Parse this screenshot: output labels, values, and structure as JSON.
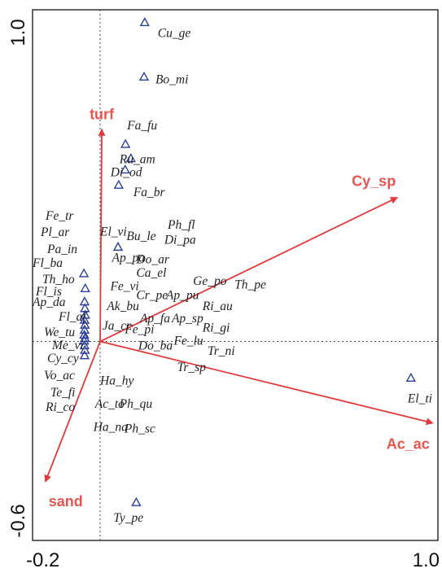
{
  "chart_data": {
    "type": "scatter",
    "title": "",
    "xlabel": "",
    "ylabel": "",
    "xlim": [
      -0.2,
      1.0
    ],
    "ylim": [
      -0.6,
      1.0
    ],
    "x_ticks": [
      "-0.2",
      "1.0"
    ],
    "y_ticks": [
      "1.0",
      "-0.6"
    ],
    "grid": false,
    "zero_lines": "dotted",
    "marker": "open-triangle",
    "colors": {
      "points": "#2b3f9e",
      "vectors": "#e23a3a",
      "labels": "#222222",
      "env_labels": "#e8544e"
    },
    "species": [
      {
        "name": "Cu_ge",
        "x": 0.132,
        "y": 0.962
      },
      {
        "name": "Bo_mi",
        "x": 0.13,
        "y": 0.798
      },
      {
        "name": "Fa_fu",
        "x": 0.075,
        "y": 0.595
      },
      {
        "name": "Ru_am",
        "x": 0.091,
        "y": 0.552
      },
      {
        "name": "Di_od",
        "x": 0.074,
        "y": 0.518
      },
      {
        "name": "Fa_br",
        "x": 0.055,
        "y": 0.472
      },
      {
        "name": "El_vi",
        "x": 0.053,
        "y": 0.285
      },
      {
        "name": "Fl_ba",
        "x": -0.048,
        "y": 0.205
      },
      {
        "name": "Ap_da",
        "x": -0.044,
        "y": 0.16
      },
      {
        "name": "Fl_is",
        "x": -0.046,
        "y": 0.12
      },
      {
        "name": "Fl_af",
        "x": -0.045,
        "y": 0.1
      },
      {
        "name": "We_tu",
        "x": -0.044,
        "y": 0.08
      },
      {
        "name": "Th_ho",
        "x": -0.046,
        "y": 0.065
      },
      {
        "name": "Pa_in",
        "x": -0.045,
        "y": 0.05
      },
      {
        "name": "Pl_ar",
        "x": -0.046,
        "y": 0.035
      },
      {
        "name": "Fe_tr",
        "x": -0.047,
        "y": 0.02
      },
      {
        "name": "Me_vi",
        "x": -0.047,
        "y": 0.002
      },
      {
        "name": "Cy_cy",
        "x": -0.046,
        "y": -0.012
      },
      {
        "name": "Vo_ac",
        "x": -0.045,
        "y": -0.026
      },
      {
        "name": "Te_fi",
        "x": -0.046,
        "y": -0.042
      },
      {
        "name": "Ri_co",
        "x": -0.045,
        "y": 0.01
      },
      {
        "name": "El_ti",
        "x": 0.92,
        "y": -0.11
      },
      {
        "name": "Ty_pe",
        "x": 0.107,
        "y": -0.485
      }
    ],
    "unmarked_labels": [
      {
        "name": "Ph_fl",
        "x": 0.2,
        "y": 0.34
      },
      {
        "name": "Bu_le",
        "x": 0.078,
        "y": 0.305
      },
      {
        "name": "Di_pa",
        "x": 0.19,
        "y": 0.295
      },
      {
        "name": "Ap_pa",
        "x": 0.035,
        "y": 0.24
      },
      {
        "name": "Do_ar",
        "x": 0.107,
        "y": 0.235
      },
      {
        "name": "Ca_el",
        "x": 0.107,
        "y": 0.195
      },
      {
        "name": "Ge_po",
        "x": 0.275,
        "y": 0.17
      },
      {
        "name": "Th_pe",
        "x": 0.398,
        "y": 0.16
      },
      {
        "name": "Fe_vi",
        "x": 0.03,
        "y": 0.155
      },
      {
        "name": "Cr_pe",
        "x": 0.107,
        "y": 0.127
      },
      {
        "name": "Ap_pu",
        "x": 0.195,
        "y": 0.127
      },
      {
        "name": "Ak_bu",
        "x": 0.02,
        "y": 0.095
      },
      {
        "name": "Ri_au",
        "x": 0.303,
        "y": 0.095
      },
      {
        "name": "Ap_fa",
        "x": 0.118,
        "y": 0.058
      },
      {
        "name": "Ap_sp",
        "x": 0.212,
        "y": 0.058
      },
      {
        "name": "Ja_cr",
        "x": 0.007,
        "y": 0.035
      },
      {
        "name": "Fe_pi",
        "x": 0.073,
        "y": 0.025
      },
      {
        "name": "Ri_gi",
        "x": 0.303,
        "y": 0.03
      },
      {
        "name": "Fe_lu",
        "x": 0.218,
        "y": -0.01
      },
      {
        "name": "Do_ba",
        "x": 0.113,
        "y": -0.025
      },
      {
        "name": "Tr_ni",
        "x": 0.318,
        "y": -0.04
      },
      {
        "name": "Tr_sp",
        "x": 0.228,
        "y": -0.09
      },
      {
        "name": "Ha_hy",
        "x": 0.0,
        "y": -0.13
      },
      {
        "name": "Ac_to",
        "x": -0.015,
        "y": -0.2
      },
      {
        "name": "Ph_qu",
        "x": 0.057,
        "y": -0.2
      },
      {
        "name": "Ha_na",
        "x": -0.02,
        "y": -0.27
      },
      {
        "name": "Ph_sc",
        "x": 0.072,
        "y": -0.275
      }
    ],
    "env_vectors": [
      {
        "name": "turf",
        "x": 0.005,
        "y": 0.64
      },
      {
        "name": "Cy_sp",
        "x": 0.88,
        "y": 0.434
      },
      {
        "name": "Ac_ac",
        "x": 0.985,
        "y": -0.246
      },
      {
        "name": "sand",
        "x": -0.162,
        "y": -0.423
      }
    ]
  }
}
